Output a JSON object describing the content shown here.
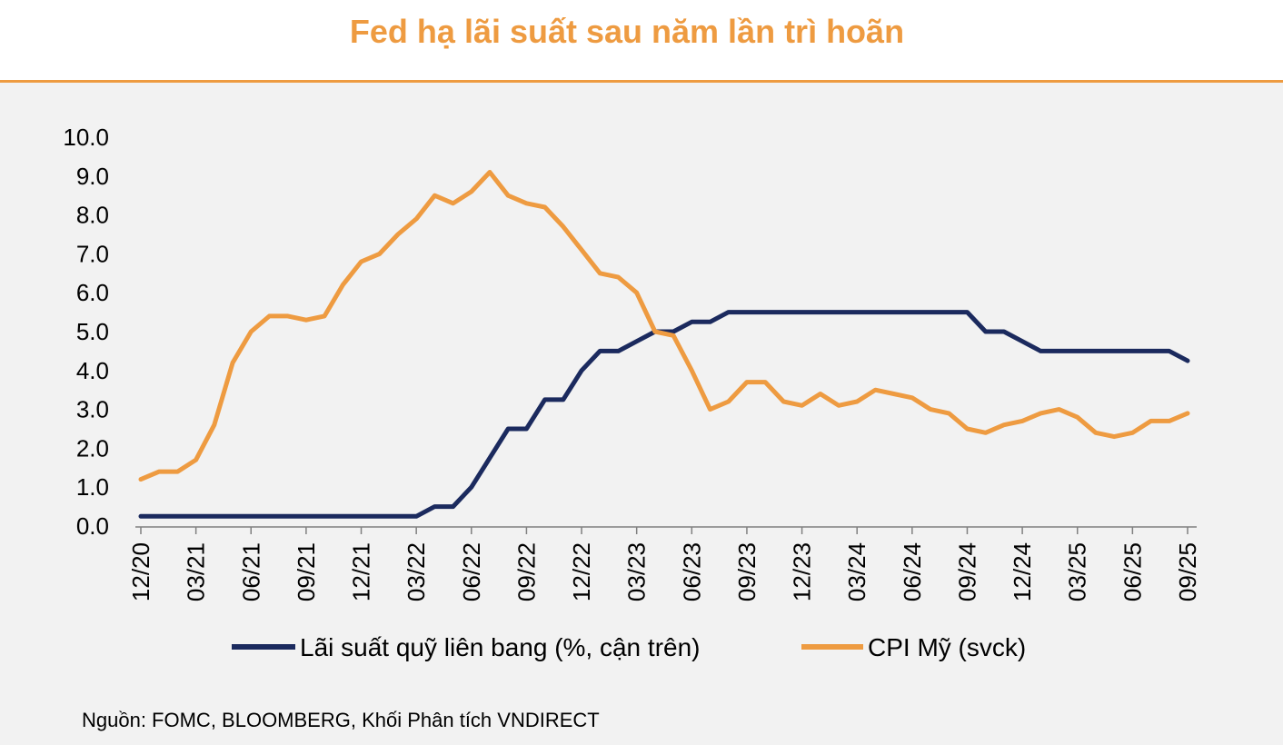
{
  "header": {
    "title": "Fed hạ lãi suất sau năm lần trì hoãn",
    "accent_color": "#EE9B41"
  },
  "footer": {
    "source": "Nguồn: FOMC, BLOOMBERG, Khối Phân tích VNDIRECT"
  },
  "chart_data": {
    "type": "line",
    "title": "Fed hạ lãi suất sau năm lần trì hoãn",
    "xlabel": "",
    "ylabel": "",
    "ylim": [
      0,
      10
    ],
    "yticks": [
      "0.0",
      "1.0",
      "2.0",
      "3.0",
      "4.0",
      "5.0",
      "6.0",
      "7.0",
      "8.0",
      "9.0",
      "10.0"
    ],
    "xtick_labels": [
      "12/20",
      "03/21",
      "06/21",
      "09/21",
      "12/21",
      "03/22",
      "06/22",
      "09/22",
      "12/22",
      "03/23",
      "06/23",
      "09/23",
      "12/23",
      "03/24",
      "06/24",
      "09/24",
      "12/24",
      "03/25",
      "06/25",
      "09/25"
    ],
    "grid": false,
    "legend_position": "bottom",
    "x": [
      "12/20",
      "01/21",
      "02/21",
      "03/21",
      "04/21",
      "05/21",
      "06/21",
      "07/21",
      "08/21",
      "09/21",
      "10/21",
      "11/21",
      "12/21",
      "01/22",
      "02/22",
      "03/22",
      "04/22",
      "05/22",
      "06/22",
      "07/22",
      "08/22",
      "09/22",
      "10/22",
      "11/22",
      "12/22",
      "01/23",
      "02/23",
      "03/23",
      "04/23",
      "05/23",
      "06/23",
      "07/23",
      "08/23",
      "09/23",
      "10/23",
      "11/23",
      "12/23",
      "01/24",
      "02/24",
      "03/24",
      "04/24",
      "05/24",
      "06/24",
      "07/24",
      "08/24",
      "09/24",
      "10/24",
      "11/24",
      "12/24",
      "01/25",
      "02/25",
      "03/25",
      "04/25",
      "05/25",
      "06/25",
      "07/25",
      "08/25",
      "09/25"
    ],
    "series": [
      {
        "name": "Lãi suất quỹ liên bang (%, cận trên)",
        "color": "#1B2A5E",
        "values": [
          0.25,
          0.25,
          0.25,
          0.25,
          0.25,
          0.25,
          0.25,
          0.25,
          0.25,
          0.25,
          0.25,
          0.25,
          0.25,
          0.25,
          0.25,
          0.25,
          0.5,
          0.5,
          1.0,
          1.75,
          2.5,
          2.5,
          3.25,
          3.25,
          4.0,
          4.5,
          4.5,
          4.75,
          5.0,
          5.0,
          5.25,
          5.25,
          5.5,
          5.5,
          5.5,
          5.5,
          5.5,
          5.5,
          5.5,
          5.5,
          5.5,
          5.5,
          5.5,
          5.5,
          5.5,
          5.5,
          5.0,
          5.0,
          4.75,
          4.5,
          4.5,
          4.5,
          4.5,
          4.5,
          4.5,
          4.5,
          4.5,
          4.25
        ]
      },
      {
        "name": "CPI Mỹ (svck)",
        "color": "#EE9B41",
        "values": [
          1.2,
          1.4,
          1.4,
          1.7,
          2.6,
          4.2,
          5.0,
          5.4,
          5.4,
          5.3,
          5.4,
          6.2,
          6.8,
          7.0,
          7.5,
          7.9,
          8.5,
          8.3,
          8.6,
          9.1,
          8.5,
          8.3,
          8.2,
          7.7,
          7.1,
          6.5,
          6.4,
          6.0,
          5.0,
          4.9,
          4.0,
          3.0,
          3.2,
          3.7,
          3.7,
          3.2,
          3.1,
          3.4,
          3.1,
          3.2,
          3.5,
          3.4,
          3.3,
          3.0,
          2.9,
          2.5,
          2.4,
          2.6,
          2.7,
          2.9,
          3.0,
          2.8,
          2.4,
          2.3,
          2.4,
          2.7,
          2.7,
          2.9
        ]
      }
    ]
  }
}
